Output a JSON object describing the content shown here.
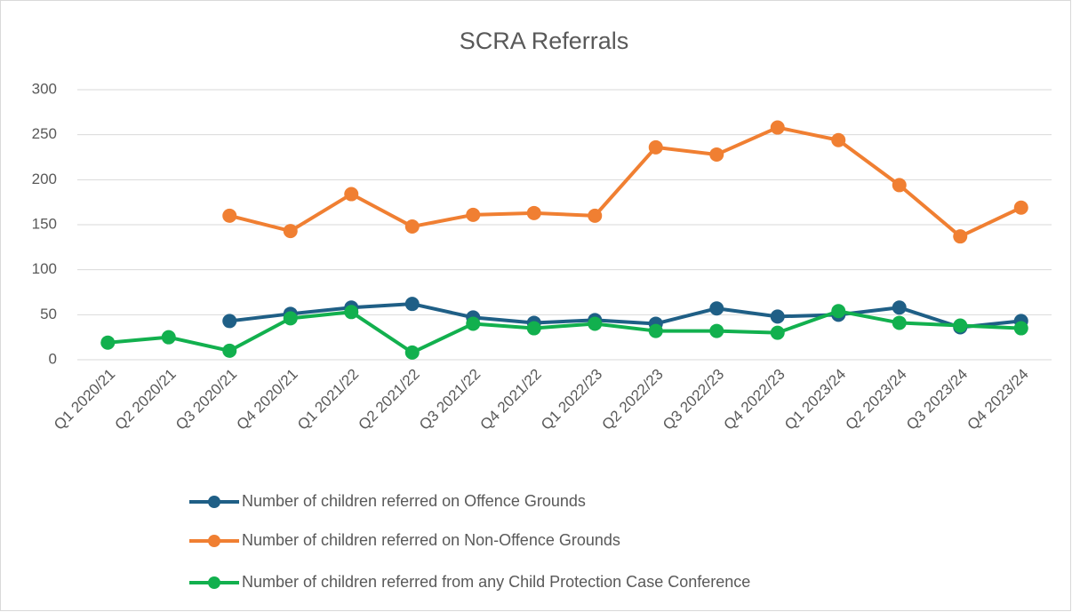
{
  "chart_data": {
    "type": "line",
    "title": "SCRA Referrals",
    "categories": [
      "Q1 2020/21",
      "Q2 2020/21",
      "Q3 2020/21",
      "Q4 2020/21",
      "Q1 2021/22",
      "Q2 2021/22",
      "Q3 2021/22",
      "Q4 2021/22",
      "Q1 2022/23",
      "Q2 2022/23",
      "Q3 2022/23",
      "Q4 2022/23",
      "Q1 2023/24",
      "Q2 2023/24",
      "Q3 2023/24",
      "Q4 2023/24"
    ],
    "series": [
      {
        "name": "Number of children referred on Offence Grounds",
        "color": "#1f5f86",
        "values": [
          null,
          null,
          43,
          51,
          58,
          62,
          47,
          41,
          44,
          40,
          57,
          48,
          50,
          58,
          36,
          43
        ]
      },
      {
        "name": "Number of children referred on Non-Offence Grounds",
        "color": "#f07f32",
        "values": [
          null,
          null,
          160,
          143,
          184,
          148,
          161,
          163,
          160,
          236,
          228,
          258,
          244,
          194,
          137,
          169
        ]
      },
      {
        "name": "Number of children referred from any Child Protection Case Conference",
        "color": "#12b04e",
        "values": [
          19,
          25,
          10,
          46,
          53,
          8,
          40,
          35,
          40,
          32,
          32,
          30,
          54,
          41,
          38,
          35
        ]
      }
    ],
    "ylim": [
      0,
      300
    ],
    "yticks": [
      0,
      50,
      100,
      150,
      200,
      250,
      300
    ],
    "grid": true,
    "legend": "bottom"
  }
}
